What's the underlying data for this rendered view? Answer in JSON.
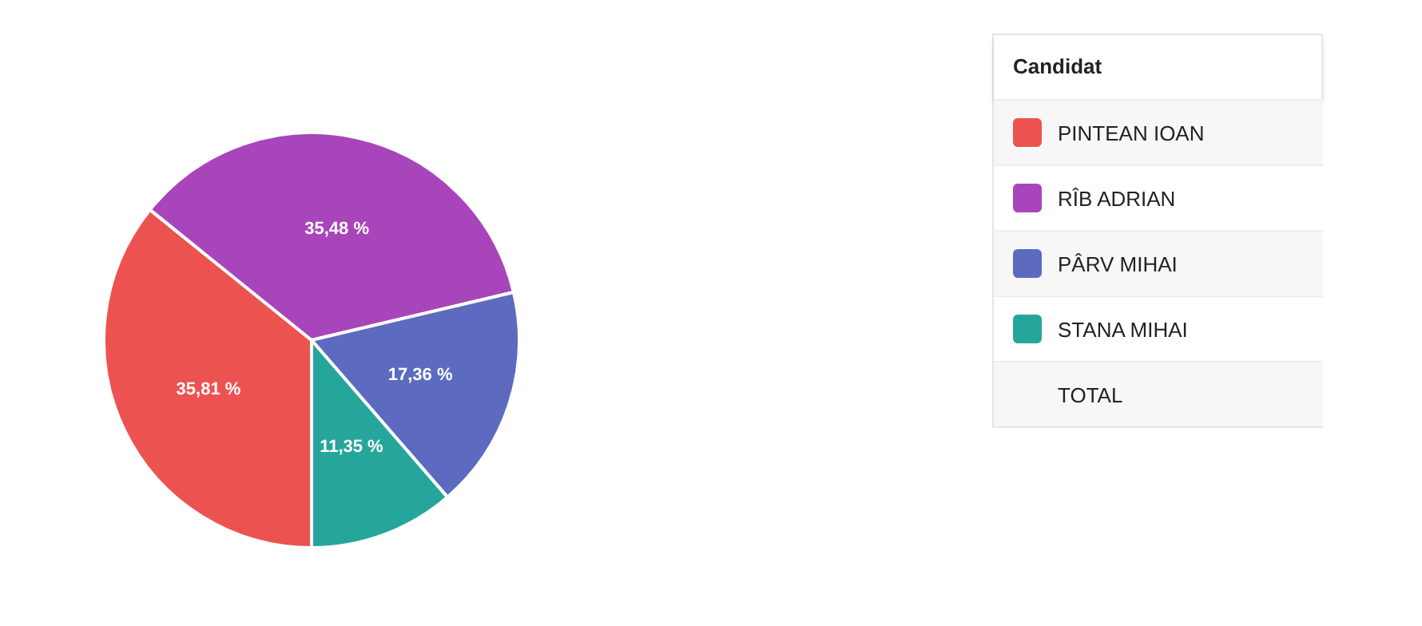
{
  "chart_data": {
    "type": "pie",
    "legend_title": "Candidat",
    "legend": "top right",
    "categories": [
      "PINTEAN IOAN",
      "RÎB ADRIAN",
      "PÂRV MIHAI",
      "STANA MIHAI"
    ],
    "values": [
      35.81,
      35.48,
      17.36,
      11.35
    ],
    "value_labels": [
      "35,81 %",
      "35,48 %",
      "17,36 %",
      "11,35 %"
    ],
    "colors": [
      "#ec5350",
      "#a845ba",
      "#5c6bc0",
      "#26a69a"
    ],
    "annotations": [
      "TOTAL"
    ]
  }
}
